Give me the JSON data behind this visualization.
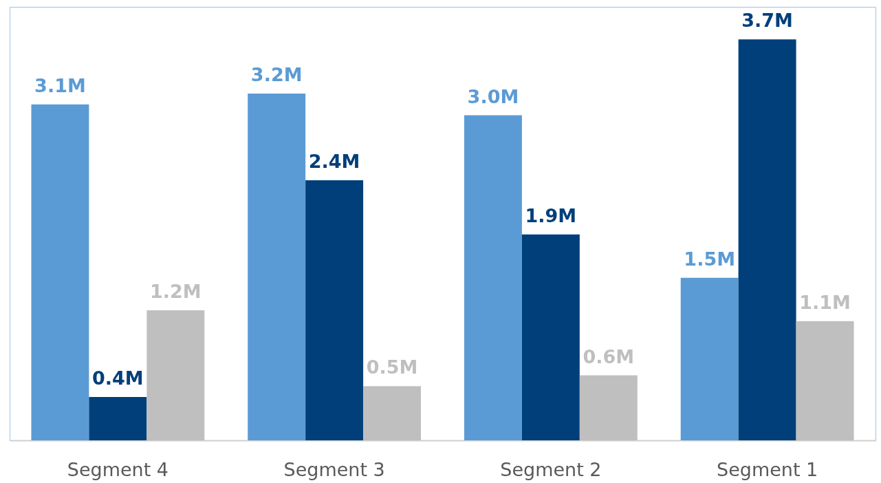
{
  "chart_data": {
    "type": "bar",
    "categories": [
      "Segment 4",
      "Segment 3",
      "Segment 2",
      "Segment 1"
    ],
    "series": [
      {
        "color": "#5b9bd5",
        "values": [
          3.1,
          3.2,
          3.0,
          1.5
        ],
        "value_labels": [
          "3.1M",
          "3.2M",
          "3.0M",
          "1.5M"
        ]
      },
      {
        "color": "#003f7a",
        "values": [
          0.4,
          2.4,
          1.9,
          3.7
        ],
        "value_labels": [
          "0.4M",
          "2.4M",
          "1.9M",
          "3.7M"
        ]
      },
      {
        "color": "#bfbfbf",
        "values": [
          1.2,
          0.5,
          0.6,
          1.1
        ],
        "value_labels": [
          "1.2M",
          "0.5M",
          "0.6M",
          "1.1M"
        ]
      }
    ],
    "tick_labels": "x",
    "grid": false,
    "legend": false
  }
}
